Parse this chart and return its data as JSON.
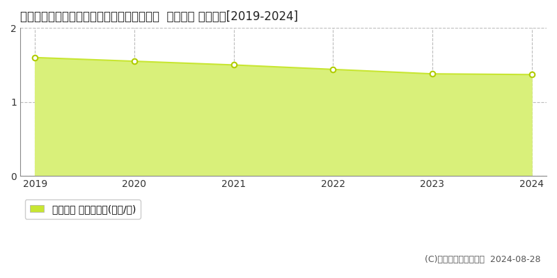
{
  "title": "兵庫県佐用郡佐用町三原字前田１４９番３外  地価公示 地価推移[2019-2024]",
  "years": [
    2019,
    2020,
    2021,
    2022,
    2023,
    2024
  ],
  "values": [
    1.6,
    1.55,
    1.5,
    1.44,
    1.38,
    1.37
  ],
  "ylim": [
    0,
    2
  ],
  "yticks": [
    0,
    1,
    2
  ],
  "line_color": "#c8e632",
  "fill_color": "#d9f07a",
  "marker_color": "#b0cc00",
  "marker_face": "#ffffff",
  "bg_color": "#ffffff",
  "grid_color": "#bbbbbb",
  "legend_label": "地価公示 平均坪単価(万円/坪)",
  "legend_marker_color": "#c8e632",
  "copyright_text": "(C)土地価格ドットコム  2024-08-28",
  "title_fontsize": 12,
  "tick_fontsize": 10,
  "legend_fontsize": 10,
  "copyright_fontsize": 9
}
